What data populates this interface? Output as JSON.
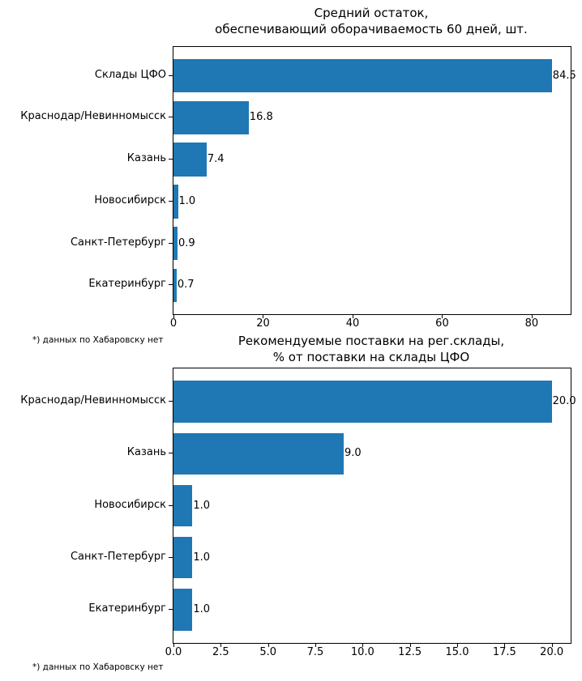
{
  "background": "#ffffff",
  "chart_data": [
    {
      "type": "bar",
      "orientation": "horizontal",
      "title": "Средний остаток,\nобеспечивающий оборачиваемость 60 дней, шт.",
      "categories": [
        "Склады ЦФО",
        "Краснодар/Невинномысск",
        "Казань",
        "Новосибирск",
        "Санкт-Петербург",
        "Екатеринбург"
      ],
      "values": [
        84.5,
        16.8,
        7.4,
        1.0,
        0.9,
        0.7
      ],
      "value_labels": [
        "84.5",
        "16.8",
        "7.4",
        "1.0",
        "0.9",
        "0.7"
      ],
      "xlabel": "",
      "ylabel": "",
      "xlim": [
        0,
        88.7
      ],
      "xticks": [
        0,
        20,
        40,
        60,
        80
      ],
      "xtick_labels": [
        "0",
        "20",
        "40",
        "60",
        "80"
      ],
      "grid": false,
      "legend": null,
      "bar_color": "#1f77b4",
      "footnote": "*) данных по Хабаровску нет"
    },
    {
      "type": "bar",
      "orientation": "horizontal",
      "title": "Рекомендуемые поставки на рег.склады,\n% от поставки на склады ЦФО",
      "categories": [
        "Краснодар/Невинномысск",
        "Казань",
        "Новосибирск",
        "Санкт-Петербург",
        "Екатеринбург"
      ],
      "values": [
        20.0,
        9.0,
        1.0,
        1.0,
        1.0
      ],
      "value_labels": [
        "20.0",
        "9.0",
        "1.0",
        "1.0",
        "1.0"
      ],
      "xlabel": "",
      "ylabel": "",
      "xlim": [
        0,
        21.0
      ],
      "xticks": [
        0,
        2.5,
        5,
        7.5,
        10,
        12.5,
        15,
        17.5,
        20
      ],
      "xtick_labels": [
        "0.0",
        "2.5",
        "5.0",
        "7.5",
        "10.0",
        "12.5",
        "15.0",
        "17.5",
        "20.0"
      ],
      "grid": false,
      "legend": null,
      "bar_color": "#1f77b4",
      "footnote": "*) данных по Хабаровску нет"
    }
  ]
}
